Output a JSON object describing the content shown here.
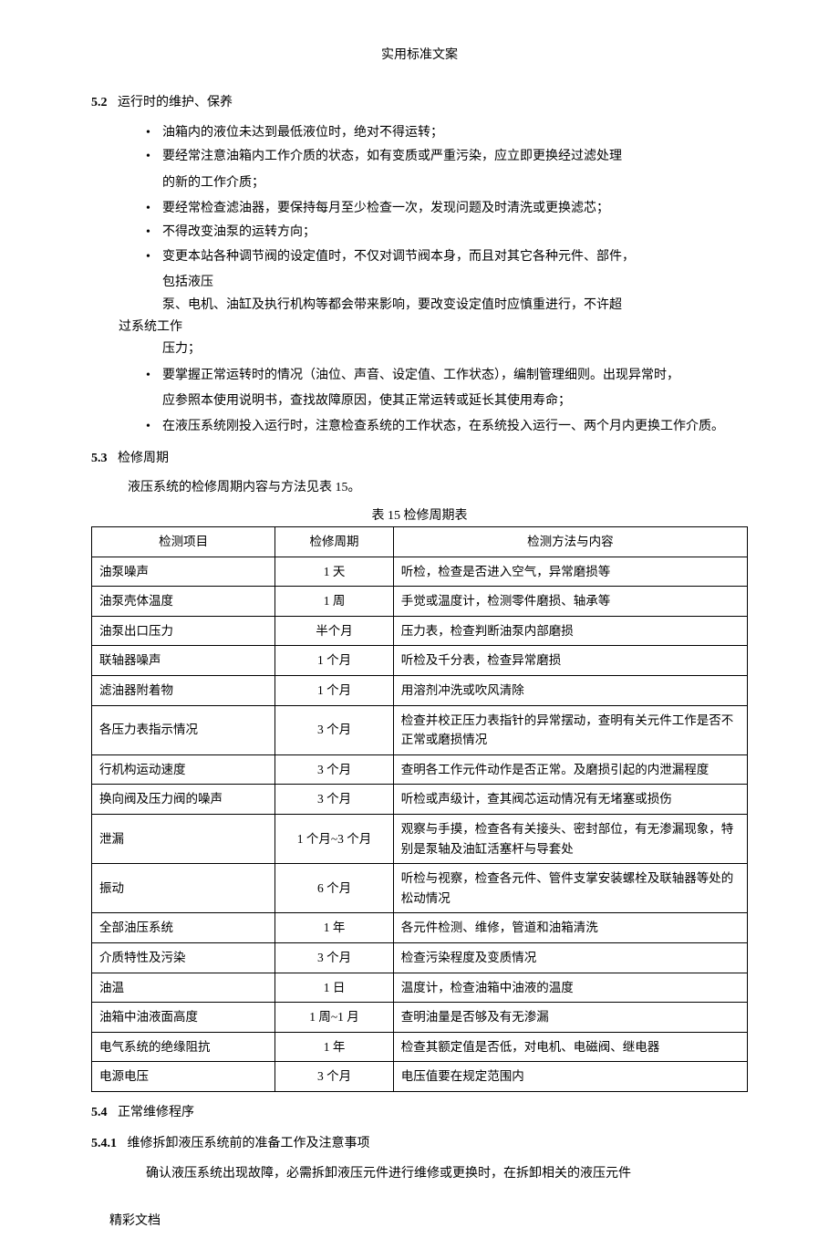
{
  "header": {
    "title": "实用标准文案"
  },
  "sections": {
    "s52": {
      "num": "5.2",
      "title": "运行时的维护、保养",
      "bullets": [
        "油箱内的液位未达到最低液位时，绝对不得运转；",
        "要经常注意油箱内工作介质的状态，如有变质或严重污染，应立即更换经过滤处理",
        "要经常检查滤油器，要保持每月至少检查一次，发现问题及时清洗或更换滤芯；",
        "不得改变油泵的运转方向；",
        "变更本站各种调节阀的设定值时，不仅对调节阀本身，而且对其它各种元件、部件，",
        "要掌握正常运转时的情况（油位、声音、设定值、工作状态），编制管理细则。出现异常时，",
        "在液压系统刚投入运行时，注意检查系统的工作状态，在系统投入运行一、两个月内更换工作介质。"
      ],
      "sublines": {
        "b2": "的新的工作介质；",
        "b5a": "包括液压",
        "b5b": "泵、电机、油缸及执行机构等都会带来影响，要改变设定值时应慎重进行，不许超",
        "b5c": "过系统工作",
        "b5d": "压力；",
        "b6": "应参照本使用说明书，查找故障原因，使其正常运转或延长其使用寿命；"
      }
    },
    "s53": {
      "num": "5.3",
      "title": "检修周期",
      "intro": "液压系统的检修周期内容与方法见表 15。",
      "caption": "表 15 检修周期表",
      "table": {
        "headers": [
          "检测项目",
          "检修周期",
          "检测方法与内容"
        ],
        "rows": [
          [
            "油泵噪声",
            "1 天",
            "听检，检查是否进入空气，异常磨损等"
          ],
          [
            "油泵壳体温度",
            "1 周",
            "手觉或温度计，检测零件磨损、轴承等"
          ],
          [
            "油泵出口压力",
            "半个月",
            "压力表，检查判断油泵内部磨损"
          ],
          [
            "联轴器噪声",
            "1 个月",
            "听检及千分表，检查异常磨损"
          ],
          [
            "滤油器附着物",
            "1 个月",
            "用溶剂冲洗或吹风清除"
          ],
          [
            "各压力表指示情况",
            "3 个月",
            "检查并校正压力表指针的异常摆动，查明有关元件工作是否不正常或磨损情况"
          ],
          [
            "行机构运动速度",
            "3 个月",
            "查明各工作元件动作是否正常。及磨损引起的内泄漏程度"
          ],
          [
            "换向阀及压力阀的噪声",
            "3 个月",
            "听检或声级计，查其阀芯运动情况有无堵塞或损伤"
          ],
          [
            "泄漏",
            "1 个月~3 个月",
            "观察与手摸，检查各有关接头、密封部位，有无渗漏现象，特别是泵轴及油缸活塞杆与导套处"
          ],
          [
            "振动",
            "6 个月",
            "听检与视察，检查各元件、管件支掌安装螺栓及联轴器等处的松动情况"
          ],
          [
            "全部油压系统",
            "1 年",
            "各元件检测、维修，管道和油箱清洗"
          ],
          [
            "介质特性及污染",
            "3 个月",
            "检查污染程度及变质情况"
          ],
          [
            "油温",
            "1 日",
            "温度计，检查油箱中油液的温度"
          ],
          [
            "油箱中油液面高度",
            "1 周~1 月",
            "查明油量是否够及有无渗漏"
          ],
          [
            "电气系统的绝缘阻抗",
            "1 年",
            "检查其额定值是否低，对电机、电磁阀、继电器"
          ],
          [
            "电源电压",
            "3 个月",
            "电压值要在规定范围内"
          ]
        ]
      }
    },
    "s54": {
      "num": "5.4",
      "title": "正常维修程序"
    },
    "s541": {
      "num": "5.4.1",
      "title": "维修拆卸液压系统前的准备工作及注意事项",
      "body": "确认液压系统出现故障，必需拆卸液压元件进行维修或更换时，在拆卸相关的液压元件"
    }
  },
  "footer": {
    "text": "精彩文档"
  }
}
